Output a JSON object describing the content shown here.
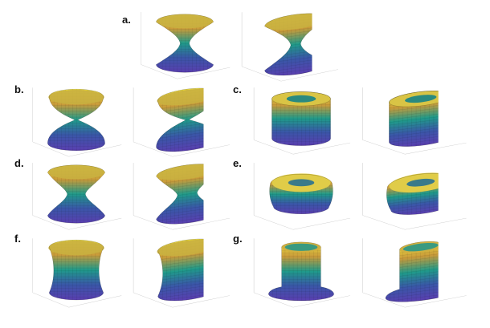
{
  "panels": [
    {
      "label": "a.",
      "shape": "hourglass",
      "colors": [
        "#f0e040",
        "#c89a3a",
        "#1f9a8a",
        "#3a56a8",
        "#5a3fb0"
      ]
    },
    {
      "label": "b.",
      "shape": "double-cone",
      "colors": [
        "#f0e040",
        "#c89a3a",
        "#1f9a8a",
        "#3a56a8",
        "#5a3fb0"
      ]
    },
    {
      "label": "c.",
      "shape": "torus-cylinder",
      "colors": [
        "#f0e040",
        "#c89a3a",
        "#1f9a8a",
        "#3a56a8",
        "#5a3fb0"
      ]
    },
    {
      "label": "d.",
      "shape": "hourglass-wide",
      "colors": [
        "#f0e040",
        "#c89a3a",
        "#1f9a8a",
        "#3a56a8",
        "#5a3fb0"
      ]
    },
    {
      "label": "e.",
      "shape": "torus",
      "colors": [
        "#f0e040",
        "#c89a3a",
        "#1f9a8a",
        "#3a56a8",
        "#5a3fb0"
      ]
    },
    {
      "label": "f.",
      "shape": "concave-cylinder",
      "colors": [
        "#f0e040",
        "#c89a3a",
        "#1f9a8a",
        "#3a56a8",
        "#5a3fb0"
      ]
    },
    {
      "label": "g.",
      "shape": "flanged-cylinder",
      "colors": [
        "#f0e040",
        "#c89a3a",
        "#1f9a8a",
        "#3a56a8",
        "#5a3fb0"
      ]
    }
  ]
}
